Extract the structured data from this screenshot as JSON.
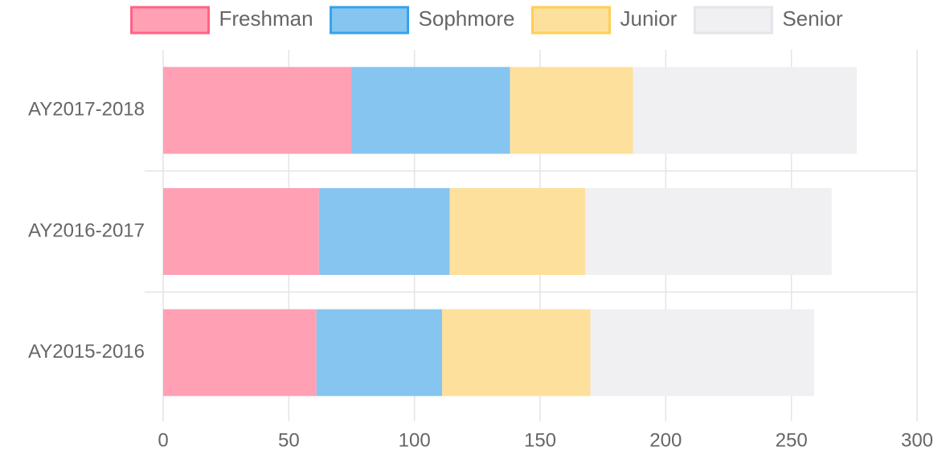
{
  "chart_data": {
    "type": "stacked-bar-horizontal",
    "categories": [
      "AY2017-2018",
      "AY2016-2017",
      "AY2015-2016"
    ],
    "series": [
      {
        "name": "Freshman",
        "color": "#ffa0b4",
        "border_color": "#ff6384",
        "values": [
          75,
          62,
          61
        ]
      },
      {
        "name": "Sophmore",
        "color": "#86c5f0",
        "border_color": "#36a2eb",
        "values": [
          63,
          52,
          50
        ]
      },
      {
        "name": "Junior",
        "color": "#fde09b",
        "border_color": "#ffce56",
        "values": [
          49,
          54,
          59
        ]
      },
      {
        "name": "Senior",
        "color": "#f0f0f3",
        "border_color": "#e4e5e9",
        "values": [
          89,
          98,
          89
        ]
      }
    ],
    "xlim": [
      0,
      300
    ],
    "xticks": [
      0,
      50,
      100,
      150,
      200,
      250,
      300
    ],
    "grid": true,
    "legend": "top"
  }
}
